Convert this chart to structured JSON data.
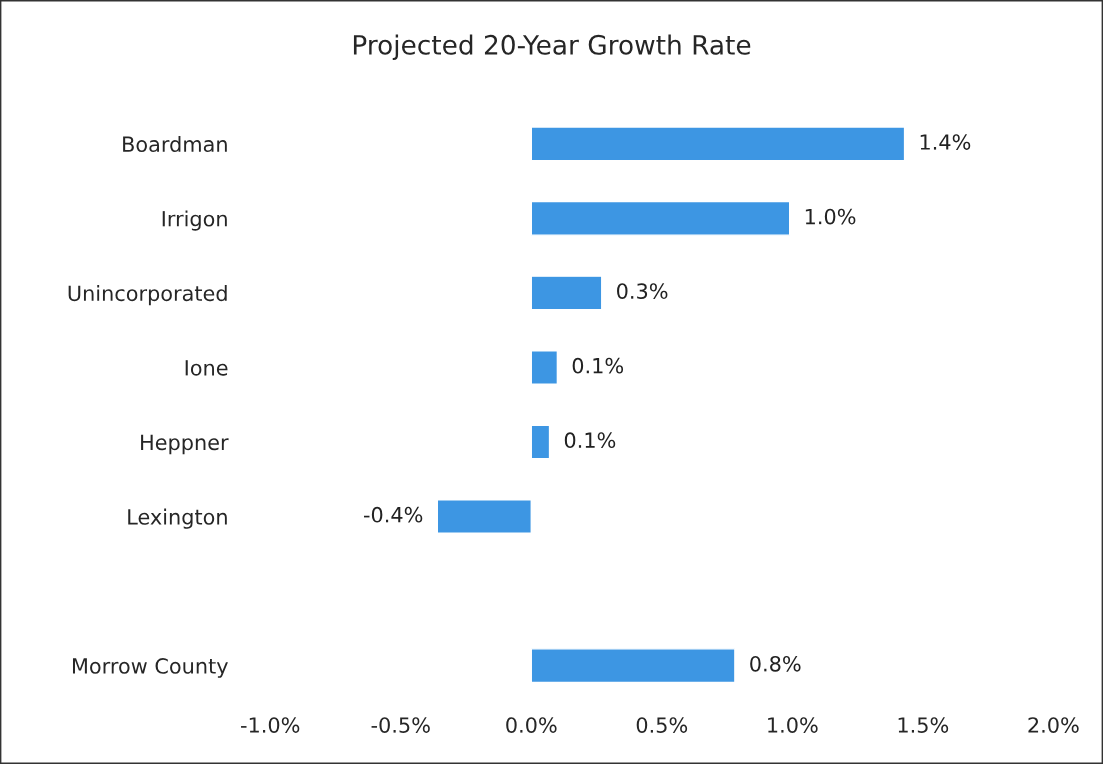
{
  "chart_data": {
    "type": "bar",
    "orientation": "horizontal",
    "title": "Projected 20-Year Growth Rate",
    "categories": [
      "Boardman",
      "Irrigon",
      "Unincorporated",
      "Ione",
      "Heppner",
      "Lexington",
      null,
      "Morrow County"
    ],
    "values": [
      1.43,
      0.99,
      0.27,
      0.1,
      0.07,
      -0.36,
      null,
      0.78
    ],
    "value_labels": [
      "1.4%",
      "1.0%",
      "0.3%",
      "0.1%",
      "0.1%",
      "-0.4%",
      null,
      "0.8%"
    ],
    "color": "#3d96e3",
    "xlim": [
      -1.0,
      2.0
    ],
    "xticks": [
      {
        "value": -1.0,
        "label": "-1.0%"
      },
      {
        "value": -0.5,
        "label": "-0.5%"
      },
      {
        "value": 0.0,
        "label": "0.0%"
      },
      {
        "value": 0.5,
        "label": "0.5%"
      },
      {
        "value": 1.0,
        "label": "1.0%"
      },
      {
        "value": 1.5,
        "label": "1.5%"
      },
      {
        "value": 2.0,
        "label": "2.0%"
      }
    ],
    "grid": false,
    "legend": false
  }
}
